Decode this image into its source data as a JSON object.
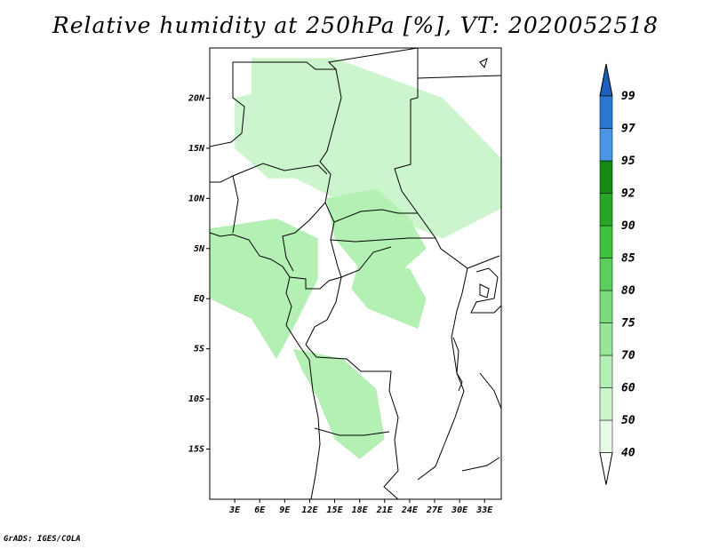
{
  "title": "Relative humidity at 250hPa [%], VT: 2020052518",
  "credit": "GrADS: IGES/COLA",
  "lat_labels": [
    "20N",
    "15N",
    "10N",
    "5N",
    "EQ",
    "5S",
    "10S",
    "15S"
  ],
  "lat_values": [
    20,
    15,
    10,
    5,
    0,
    -5,
    -10,
    -15
  ],
  "lon_labels": [
    "3E",
    "6E",
    "9E",
    "12E",
    "15E",
    "18E",
    "21E",
    "24E",
    "27E",
    "30E",
    "33E"
  ],
  "lon_values": [
    3,
    6,
    9,
    12,
    15,
    18,
    21,
    24,
    27,
    30,
    33
  ],
  "map_extent": {
    "lon_min": 0,
    "lon_max": 35,
    "lat_min": -20,
    "lat_max": 25
  },
  "colorbar": {
    "levels": [
      "40",
      "50",
      "60",
      "70",
      "75",
      "80",
      "85",
      "90",
      "92",
      "95",
      "97",
      "99"
    ],
    "colors": [
      "#ffffff",
      "#e6fbe6",
      "#cdf5cd",
      "#b4efb4",
      "#96e696",
      "#78dc78",
      "#5acf5a",
      "#3cc23c",
      "#26a826",
      "#148c14",
      "#4a96e6",
      "#2878d2",
      "#1e5fbe"
    ]
  },
  "fill_regions": [
    {
      "color": "#cdf5cd",
      "lon": [
        5,
        15,
        28,
        35,
        35,
        28,
        22,
        15,
        8,
        5
      ],
      "lat": [
        24,
        24,
        20,
        14,
        9,
        6,
        8,
        10,
        13,
        20
      ]
    },
    {
      "color": "#b4efb4",
      "lon": [
        0,
        8,
        13,
        13,
        10,
        8,
        5,
        0
      ],
      "lat": [
        7,
        8,
        6,
        2,
        -3,
        -6,
        -2,
        0
      ]
    },
    {
      "color": "#b4efb4",
      "lon": [
        10,
        16,
        20,
        21,
        18,
        15,
        13,
        11
      ],
      "lat": [
        -5,
        -6,
        -9,
        -14,
        -16,
        -14,
        -10,
        -7
      ]
    },
    {
      "color": "#b4efb4",
      "lon": [
        14,
        20,
        24,
        26,
        22,
        18,
        15
      ],
      "lat": [
        10,
        11,
        8,
        5,
        2,
        3,
        6
      ]
    },
    {
      "color": "#b4efb4",
      "lon": [
        18,
        24,
        26,
        25,
        22,
        19,
        17
      ],
      "lat": [
        4,
        3,
        0,
        -3,
        -2,
        -1,
        1
      ]
    },
    {
      "color": "#cdf5cd",
      "lon": [
        3,
        12,
        14,
        12,
        7,
        3
      ],
      "lat": [
        20,
        22,
        16,
        12,
        12,
        15
      ]
    }
  ]
}
